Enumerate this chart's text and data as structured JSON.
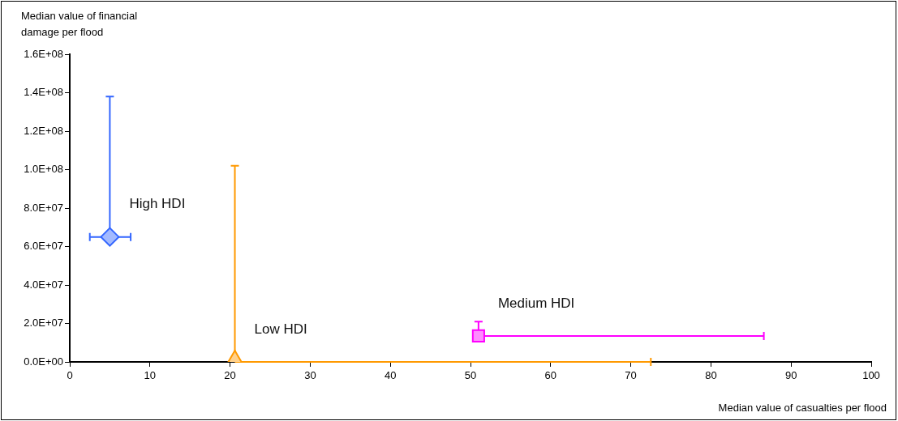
{
  "chart_data": {
    "type": "scatter",
    "xlabel": "Median value of casualties per flood",
    "ylabel": "Median value of financial damage per flood",
    "xlim": [
      0,
      100
    ],
    "xticks": [
      0,
      10,
      20,
      30,
      40,
      50,
      60,
      70,
      80,
      90,
      100
    ],
    "ylim": [
      0,
      160000000
    ],
    "yticks": [
      {
        "value": 0,
        "label": "0.0E+00"
      },
      {
        "value": 20000000,
        "label": "2.0E+07"
      },
      {
        "value": 40000000,
        "label": "4.0E+07"
      },
      {
        "value": 60000000,
        "label": "6.0E+07"
      },
      {
        "value": 80000000,
        "label": "8.0E+07"
      },
      {
        "value": 100000000,
        "label": "1.0E+08"
      },
      {
        "value": 120000000,
        "label": "1.2E+08"
      },
      {
        "value": 140000000,
        "label": "1.4E+08"
      },
      {
        "value": 160000000,
        "label": "1.6E+08"
      }
    ],
    "grid": false,
    "legend": false,
    "series": [
      {
        "name": "High HDI",
        "color": "#3366ff",
        "marker": "diamond",
        "x": [
          5
        ],
        "values": [
          65000000
        ],
        "errors": [
          [
            65000000,
            138000000
          ]
        ],
        "xerrors": [
          [
            2.5,
            7.6
          ]
        ]
      },
      {
        "name": "Low HDI",
        "color": "#ff9900",
        "marker": "triangle",
        "x": [
          20.6
        ],
        "values": [
          0
        ],
        "errors": [
          [
            0,
            102000000
          ]
        ],
        "xerrors": [
          [
            20.6,
            72.5
          ]
        ]
      },
      {
        "name": "Medium HDI",
        "color": "#ff00ff",
        "marker": "square",
        "x": [
          51
        ],
        "values": [
          13500000
        ],
        "errors": [
          [
            13500000,
            21000000
          ]
        ],
        "xerrors": [
          [
            51,
            86.6
          ]
        ]
      }
    ]
  }
}
